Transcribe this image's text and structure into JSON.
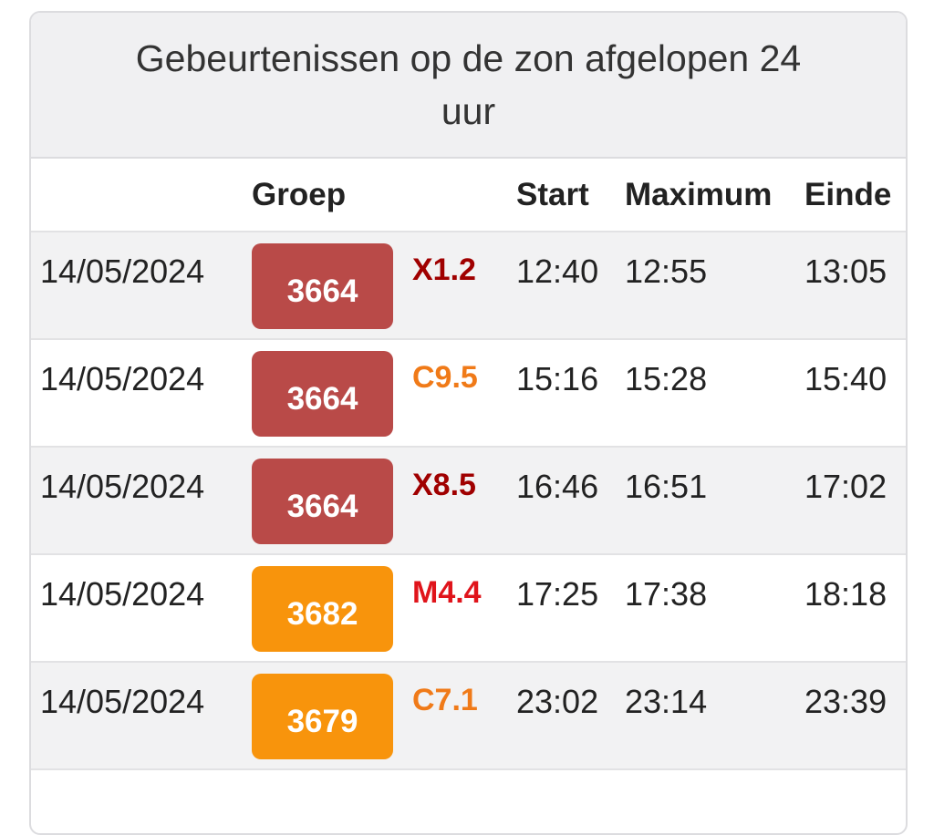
{
  "title": "Gebeurtenissen op de zon afgelopen 24 uur",
  "headers": {
    "date": "",
    "group": "Groep",
    "class": "",
    "start": "Start",
    "maximum": "Maximum",
    "end": "Einde"
  },
  "colors": {
    "red_badge": "#b94a48",
    "orange_badge": "#f8940c",
    "X": "#a00000",
    "M": "#e0141b",
    "C": "#f07a18"
  },
  "rows": [
    {
      "date": "14/05/2024",
      "group": "3664",
      "group_color": "#b94a48",
      "class": "X1.2",
      "class_color": "#a00000",
      "start": "12:40",
      "maximum": "12:55",
      "end": "13:05"
    },
    {
      "date": "14/05/2024",
      "group": "3664",
      "group_color": "#b94a48",
      "class": "C9.5",
      "class_color": "#f07a18",
      "start": "15:16",
      "maximum": "15:28",
      "end": "15:40"
    },
    {
      "date": "14/05/2024",
      "group": "3664",
      "group_color": "#b94a48",
      "class": "X8.5",
      "class_color": "#a00000",
      "start": "16:46",
      "maximum": "16:51",
      "end": "17:02"
    },
    {
      "date": "14/05/2024",
      "group": "3682",
      "group_color": "#f8940c",
      "class": "M4.4",
      "class_color": "#e0141b",
      "start": "17:25",
      "maximum": "17:38",
      "end": "18:18"
    },
    {
      "date": "14/05/2024",
      "group": "3679",
      "group_color": "#f8940c",
      "class": "C7.1",
      "class_color": "#f07a18",
      "start": "23:02",
      "maximum": "23:14",
      "end": "23:39"
    }
  ]
}
